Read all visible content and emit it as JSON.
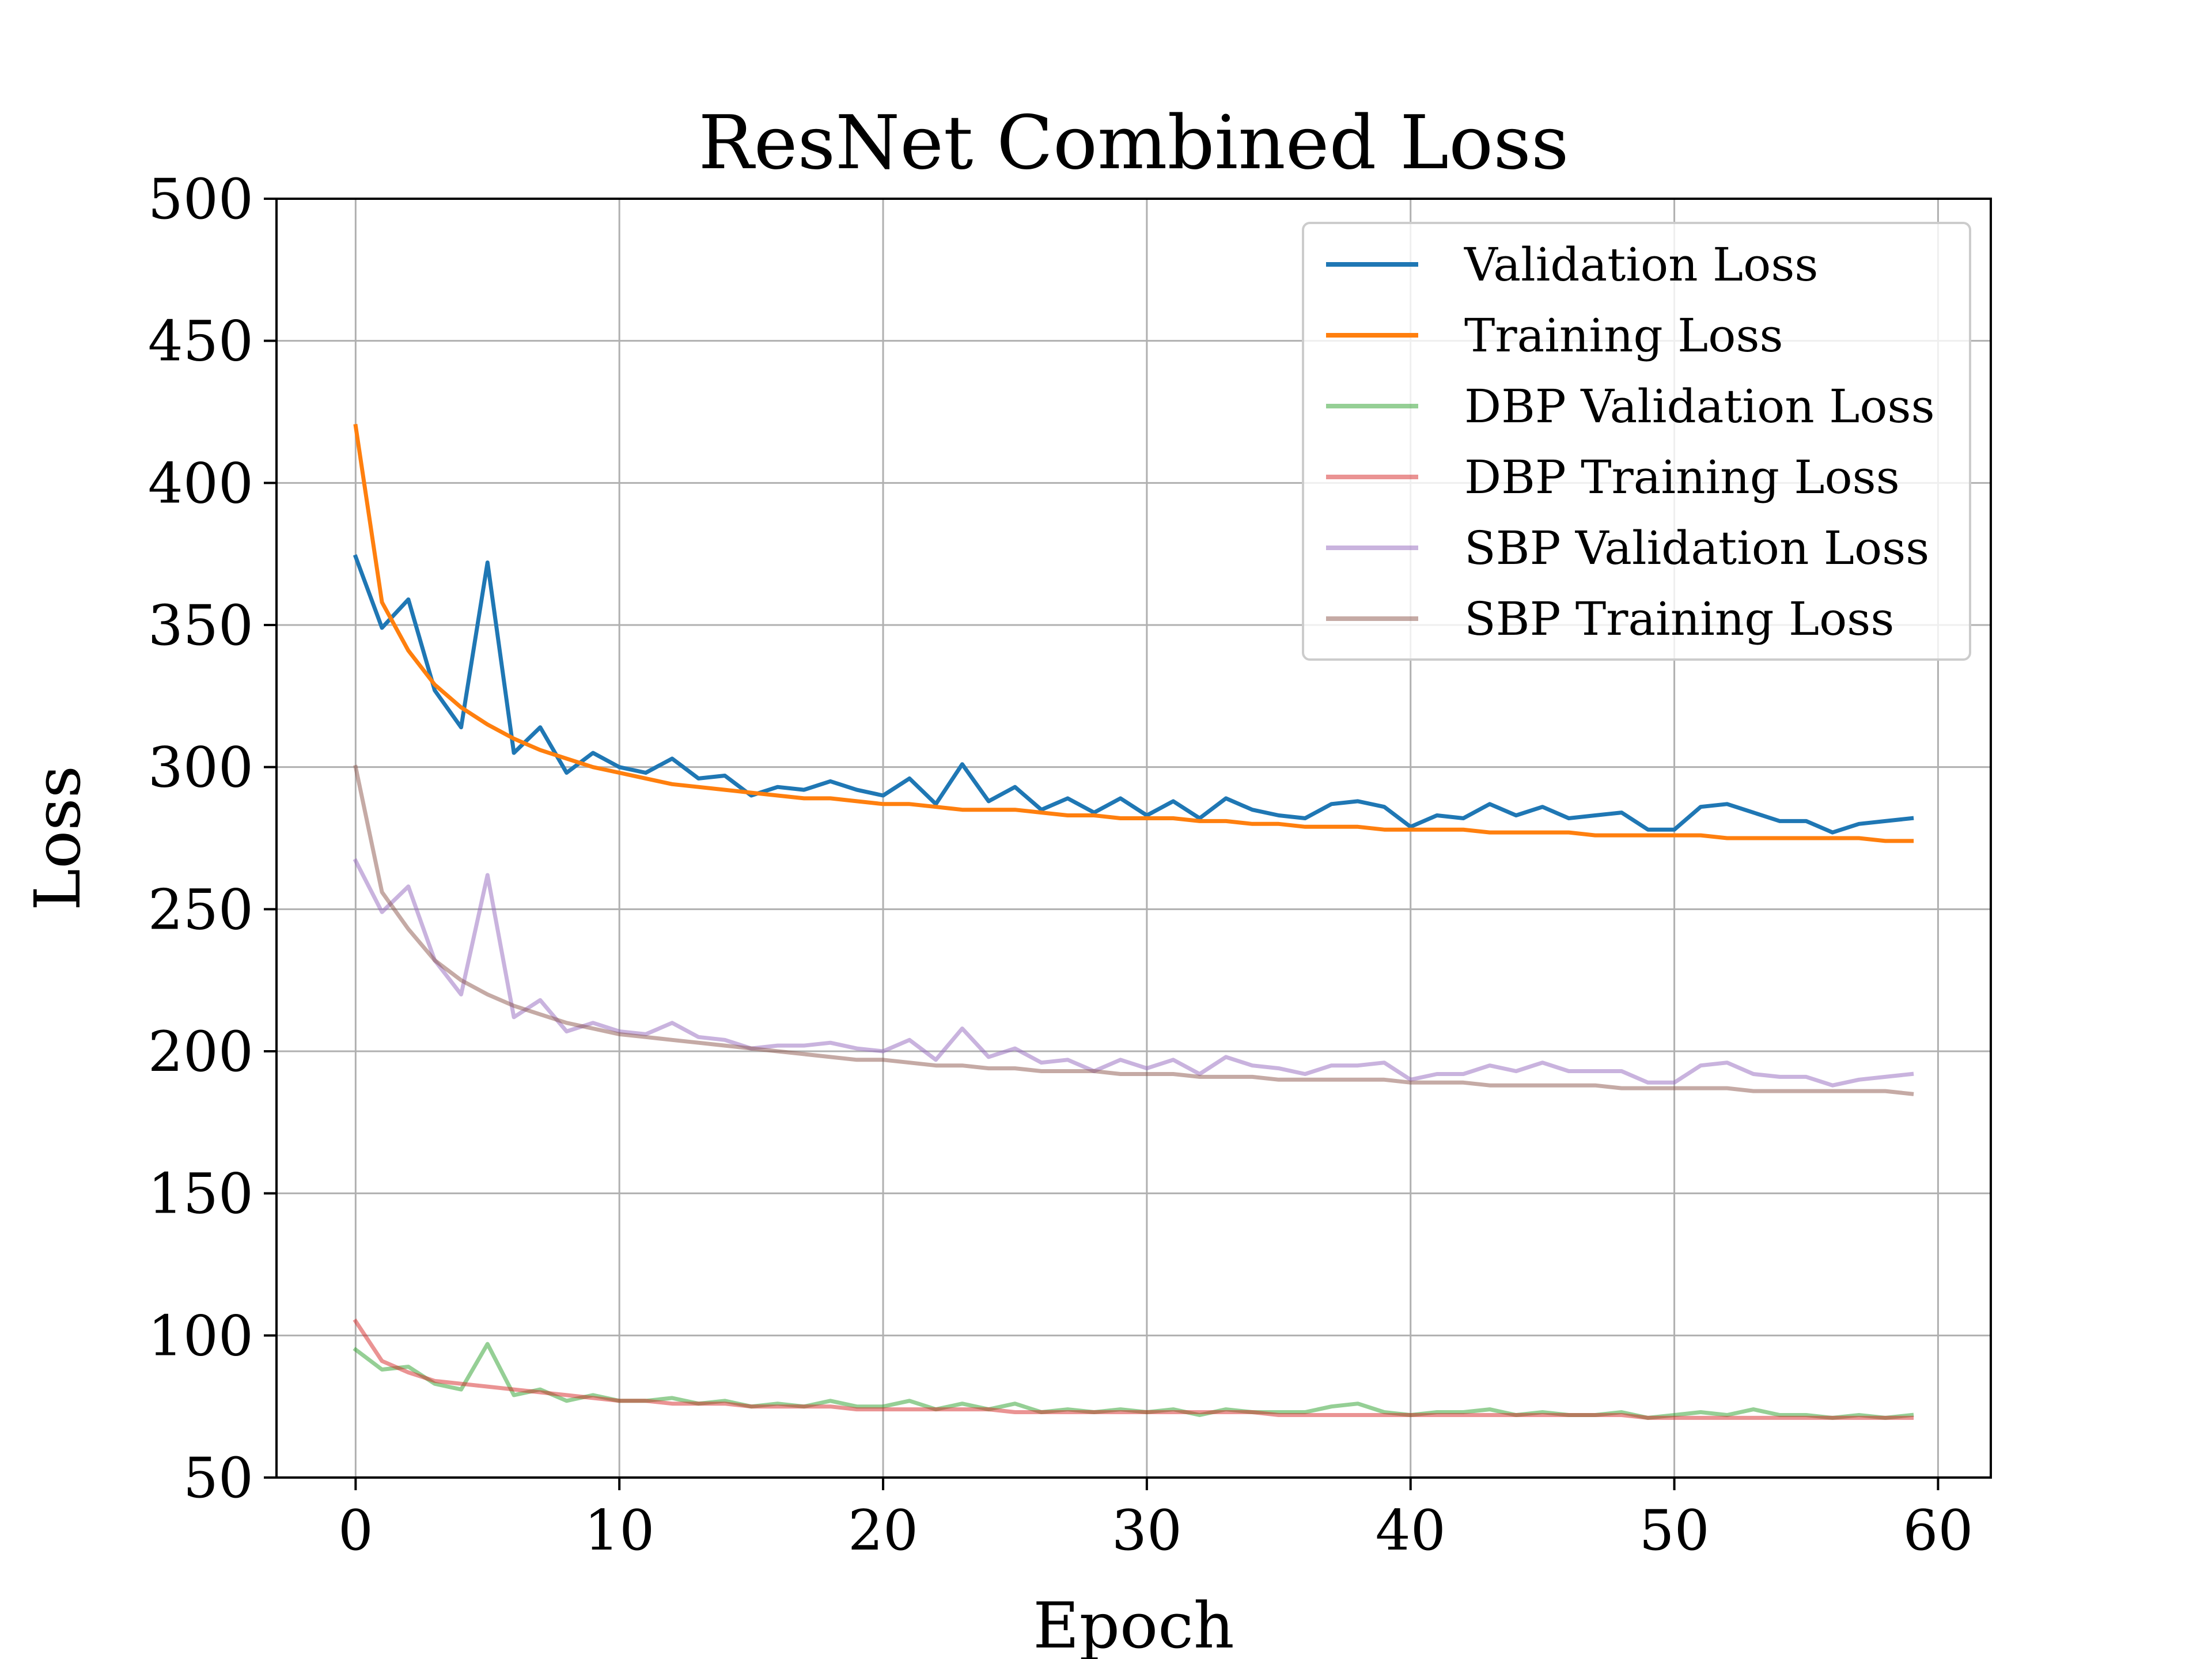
{
  "chart_data": {
    "type": "line",
    "title": "ResNet Combined Loss",
    "xlabel": "Epoch",
    "ylabel": "Loss",
    "xlim": [
      -3,
      62
    ],
    "ylim": [
      50,
      500
    ],
    "xticks": [
      0,
      10,
      20,
      30,
      40,
      50,
      60
    ],
    "yticks": [
      50,
      100,
      150,
      200,
      250,
      300,
      350,
      400,
      450,
      500
    ],
    "grid": true,
    "legend_position": "upper-right",
    "series": [
      {
        "name": "Validation Loss",
        "color": "#1f77b4",
        "opacity": 1,
        "values": [
          374,
          349,
          359,
          327,
          314,
          372,
          305,
          314,
          298,
          305,
          300,
          298,
          303,
          296,
          297,
          290,
          293,
          292,
          295,
          292,
          290,
          296,
          287,
          301,
          288,
          293,
          285,
          289,
          284,
          289,
          283,
          288,
          282,
          289,
          285,
          283,
          282,
          287,
          288,
          286,
          279,
          283,
          282,
          287,
          283,
          286,
          282,
          283,
          284,
          278,
          278,
          286,
          287,
          284,
          281,
          281,
          277,
          280,
          281,
          282
        ]
      },
      {
        "name": "Training Loss",
        "color": "#ff7f0e",
        "opacity": 1,
        "values": [
          420,
          358,
          341,
          329,
          321,
          315,
          310,
          306,
          303,
          300,
          298,
          296,
          294,
          293,
          292,
          291,
          290,
          289,
          289,
          288,
          287,
          287,
          286,
          285,
          285,
          285,
          284,
          283,
          283,
          282,
          282,
          282,
          281,
          281,
          280,
          280,
          279,
          279,
          279,
          278,
          278,
          278,
          278,
          277,
          277,
          277,
          277,
          276,
          276,
          276,
          276,
          276,
          275,
          275,
          275,
          275,
          275,
          275,
          274,
          274
        ]
      },
      {
        "name": "DBP Validation Loss",
        "color": "#2ca02c",
        "opacity": 0.5,
        "values": [
          95,
          88,
          89,
          83,
          81,
          97,
          79,
          81,
          77,
          79,
          77,
          77,
          78,
          76,
          77,
          75,
          76,
          75,
          77,
          75,
          75,
          77,
          74,
          76,
          74,
          76,
          73,
          74,
          73,
          74,
          73,
          74,
          72,
          74,
          73,
          73,
          73,
          75,
          76,
          73,
          72,
          73,
          73,
          74,
          72,
          73,
          72,
          72,
          73,
          71,
          72,
          73,
          72,
          74,
          72,
          72,
          71,
          72,
          71,
          72
        ]
      },
      {
        "name": "DBP Training Loss",
        "color": "#d62728",
        "opacity": 0.5,
        "values": [
          105,
          91,
          87,
          84,
          83,
          82,
          81,
          80,
          79,
          78,
          77,
          77,
          76,
          76,
          76,
          75,
          75,
          75,
          75,
          74,
          74,
          74,
          74,
          74,
          74,
          73,
          73,
          73,
          73,
          73,
          73,
          73,
          73,
          73,
          73,
          72,
          72,
          72,
          72,
          72,
          72,
          72,
          72,
          72,
          72,
          72,
          72,
          72,
          72,
          71,
          71,
          71,
          71,
          71,
          71,
          71,
          71,
          71,
          71,
          71
        ]
      },
      {
        "name": "SBP Validation Loss",
        "color": "#9467bd",
        "opacity": 0.5,
        "values": [
          267,
          249,
          258,
          232,
          220,
          262,
          212,
          218,
          207,
          210,
          207,
          206,
          210,
          205,
          204,
          201,
          202,
          202,
          203,
          201,
          200,
          204,
          197,
          208,
          198,
          201,
          196,
          197,
          193,
          197,
          194,
          197,
          192,
          198,
          195,
          194,
          192,
          195,
          195,
          196,
          190,
          192,
          192,
          195,
          193,
          196,
          193,
          193,
          193,
          189,
          189,
          195,
          196,
          192,
          191,
          191,
          188,
          190,
          191,
          192
        ]
      },
      {
        "name": "SBP Training Loss",
        "color": "#8c564b",
        "opacity": 0.5,
        "values": [
          300,
          256,
          243,
          232,
          225,
          220,
          216,
          213,
          210,
          208,
          206,
          205,
          204,
          203,
          202,
          201,
          200,
          199,
          198,
          197,
          197,
          196,
          195,
          195,
          194,
          194,
          193,
          193,
          193,
          192,
          192,
          192,
          191,
          191,
          191,
          190,
          190,
          190,
          190,
          190,
          189,
          189,
          189,
          188,
          188,
          188,
          188,
          188,
          187,
          187,
          187,
          187,
          187,
          186,
          186,
          186,
          186,
          186,
          186,
          185
        ]
      }
    ]
  }
}
